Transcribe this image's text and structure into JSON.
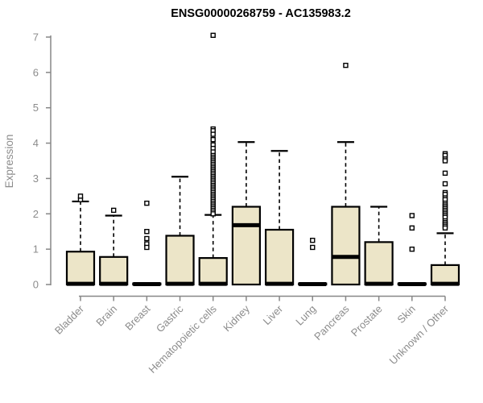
{
  "chart_data": {
    "type": "boxplot",
    "title": "ENSG00000268759 - AC135983.2",
    "ylabel": "Expression",
    "xlabel": "",
    "ylim": [
      0,
      7
    ],
    "yticks": [
      0,
      1,
      2,
      3,
      4,
      5,
      6,
      7
    ],
    "grid": false,
    "legend": "none",
    "categories": [
      "Bladder",
      "Brain",
      "Breast",
      "Gastric",
      "Hematopoietic cells",
      "Kidney",
      "Liver",
      "Lung",
      "Pancreas",
      "Prostate",
      "Skin",
      "Unknown / Other"
    ],
    "series": [
      {
        "name": "Bladder",
        "q1": 0,
        "median": 0.02,
        "q3": 0.93,
        "whisker_low": 0,
        "whisker_high": 2.35,
        "outliers": [
          2.4,
          2.5
        ]
      },
      {
        "name": "Brain",
        "q1": 0,
        "median": 0.02,
        "q3": 0.78,
        "whisker_low": 0,
        "whisker_high": 1.95,
        "outliers": [
          2.1
        ]
      },
      {
        "name": "Breast",
        "q1": 0,
        "median": 0.01,
        "q3": 0.03,
        "whisker_low": 0,
        "whisker_high": 0.03,
        "outliers": [
          2.3,
          1.5,
          1.3,
          1.15,
          1.05
        ]
      },
      {
        "name": "Gastric",
        "q1": 0,
        "median": 0.02,
        "q3": 1.38,
        "whisker_low": 0,
        "whisker_high": 3.05,
        "outliers": []
      },
      {
        "name": "Hematopoietic cells",
        "q1": 0,
        "median": 0.02,
        "q3": 0.75,
        "whisker_low": 0,
        "whisker_high": 1.97,
        "outliers": [
          7.05,
          4.4,
          4.35,
          4.25,
          4.1,
          3.95,
          3.85,
          3.75,
          3.65,
          3.6,
          3.55,
          3.5,
          3.45,
          3.4,
          3.35,
          3.3,
          3.25,
          3.2,
          3.15,
          3.1,
          3.05,
          3.0,
          2.95,
          2.9,
          2.85,
          2.8,
          2.75,
          2.7,
          2.65,
          2.6,
          2.55,
          2.5,
          2.45,
          2.4,
          2.35,
          2.3,
          2.25,
          2.2,
          2.15,
          2.1,
          2.05,
          2.0
        ]
      },
      {
        "name": "Kidney",
        "q1": 0,
        "median": 1.68,
        "q3": 2.2,
        "whisker_low": 0,
        "whisker_high": 4.03,
        "outliers": []
      },
      {
        "name": "Liver",
        "q1": 0,
        "median": 0.02,
        "q3": 1.55,
        "whisker_low": 0,
        "whisker_high": 3.78,
        "outliers": []
      },
      {
        "name": "Lung",
        "q1": 0,
        "median": 0.01,
        "q3": 0.03,
        "whisker_low": 0,
        "whisker_high": 0.03,
        "outliers": [
          1.25,
          1.05
        ]
      },
      {
        "name": "Pancreas",
        "q1": 0,
        "median": 0.78,
        "q3": 2.2,
        "whisker_low": 0,
        "whisker_high": 4.03,
        "outliers": [
          6.2
        ]
      },
      {
        "name": "Prostate",
        "q1": 0,
        "median": 0.02,
        "q3": 1.2,
        "whisker_low": 0,
        "whisker_high": 2.2,
        "outliers": []
      },
      {
        "name": "Skin",
        "q1": 0,
        "median": 0.01,
        "q3": 0.03,
        "whisker_low": 0,
        "whisker_high": 0.03,
        "outliers": [
          1.95,
          1.6,
          1.0
        ]
      },
      {
        "name": "Unknown / Other",
        "q1": 0,
        "median": 0.02,
        "q3": 0.55,
        "whisker_low": 0,
        "whisker_high": 1.45,
        "outliers": [
          3.7,
          3.65,
          3.55,
          3.5,
          3.15,
          2.85,
          2.6,
          2.55,
          2.45,
          2.4,
          2.3,
          2.25,
          2.2,
          2.15,
          2.1,
          2.05,
          2.0,
          1.95,
          1.9,
          1.8,
          1.75,
          1.7,
          1.65,
          1.6
        ]
      }
    ],
    "colors": {
      "box_fill": "#ece5c8",
      "box_border": "#000000",
      "median": "#000000",
      "whisker": "#000000",
      "outlier_fill": "#ffffff",
      "axis": "#878787",
      "tick_label": "#8c8c8c",
      "title": "#000000"
    }
  }
}
